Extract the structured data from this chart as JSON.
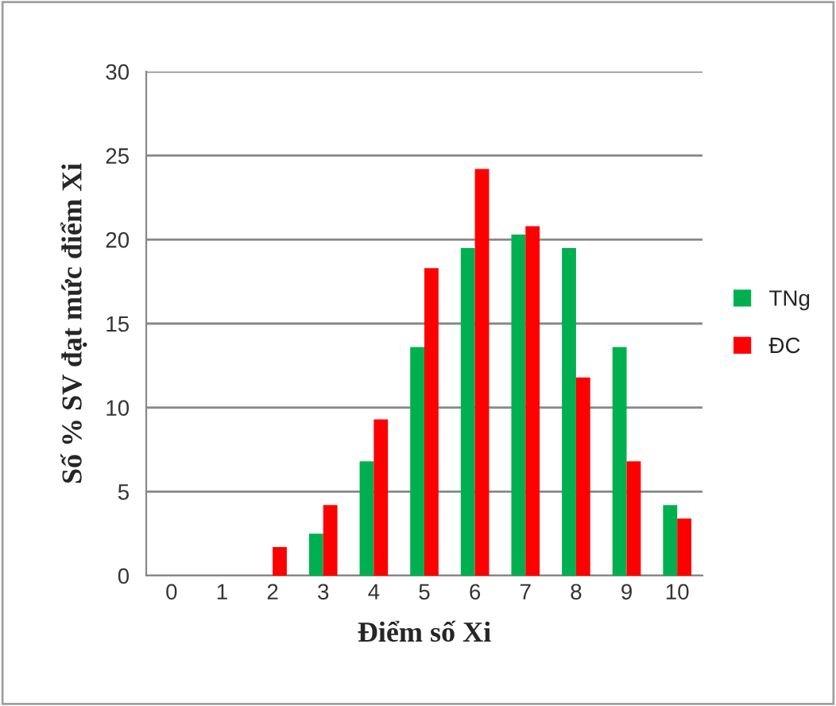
{
  "chart_data": {
    "type": "bar",
    "xlabel": "Điểm số Xi",
    "ylabel": "Số % SV đạt mức điểm Xi",
    "categories": [
      "0",
      "1",
      "2",
      "3",
      "4",
      "5",
      "6",
      "7",
      "8",
      "9",
      "10"
    ],
    "series": [
      {
        "name": "TNg",
        "color": "#00b050",
        "values": [
          null,
          null,
          null,
          2.5,
          6.8,
          13.6,
          19.5,
          20.3,
          19.5,
          13.6,
          4.2
        ]
      },
      {
        "name": "ĐC",
        "color": "#ff0000",
        "values": [
          null,
          null,
          1.7,
          4.2,
          9.3,
          18.3,
          24.2,
          20.8,
          11.8,
          6.8,
          3.4
        ]
      }
    ],
    "ylim": [
      0,
      30
    ],
    "yticks": [
      0,
      5,
      10,
      15,
      20,
      25,
      30
    ],
    "grid": "y",
    "legend": "right"
  }
}
